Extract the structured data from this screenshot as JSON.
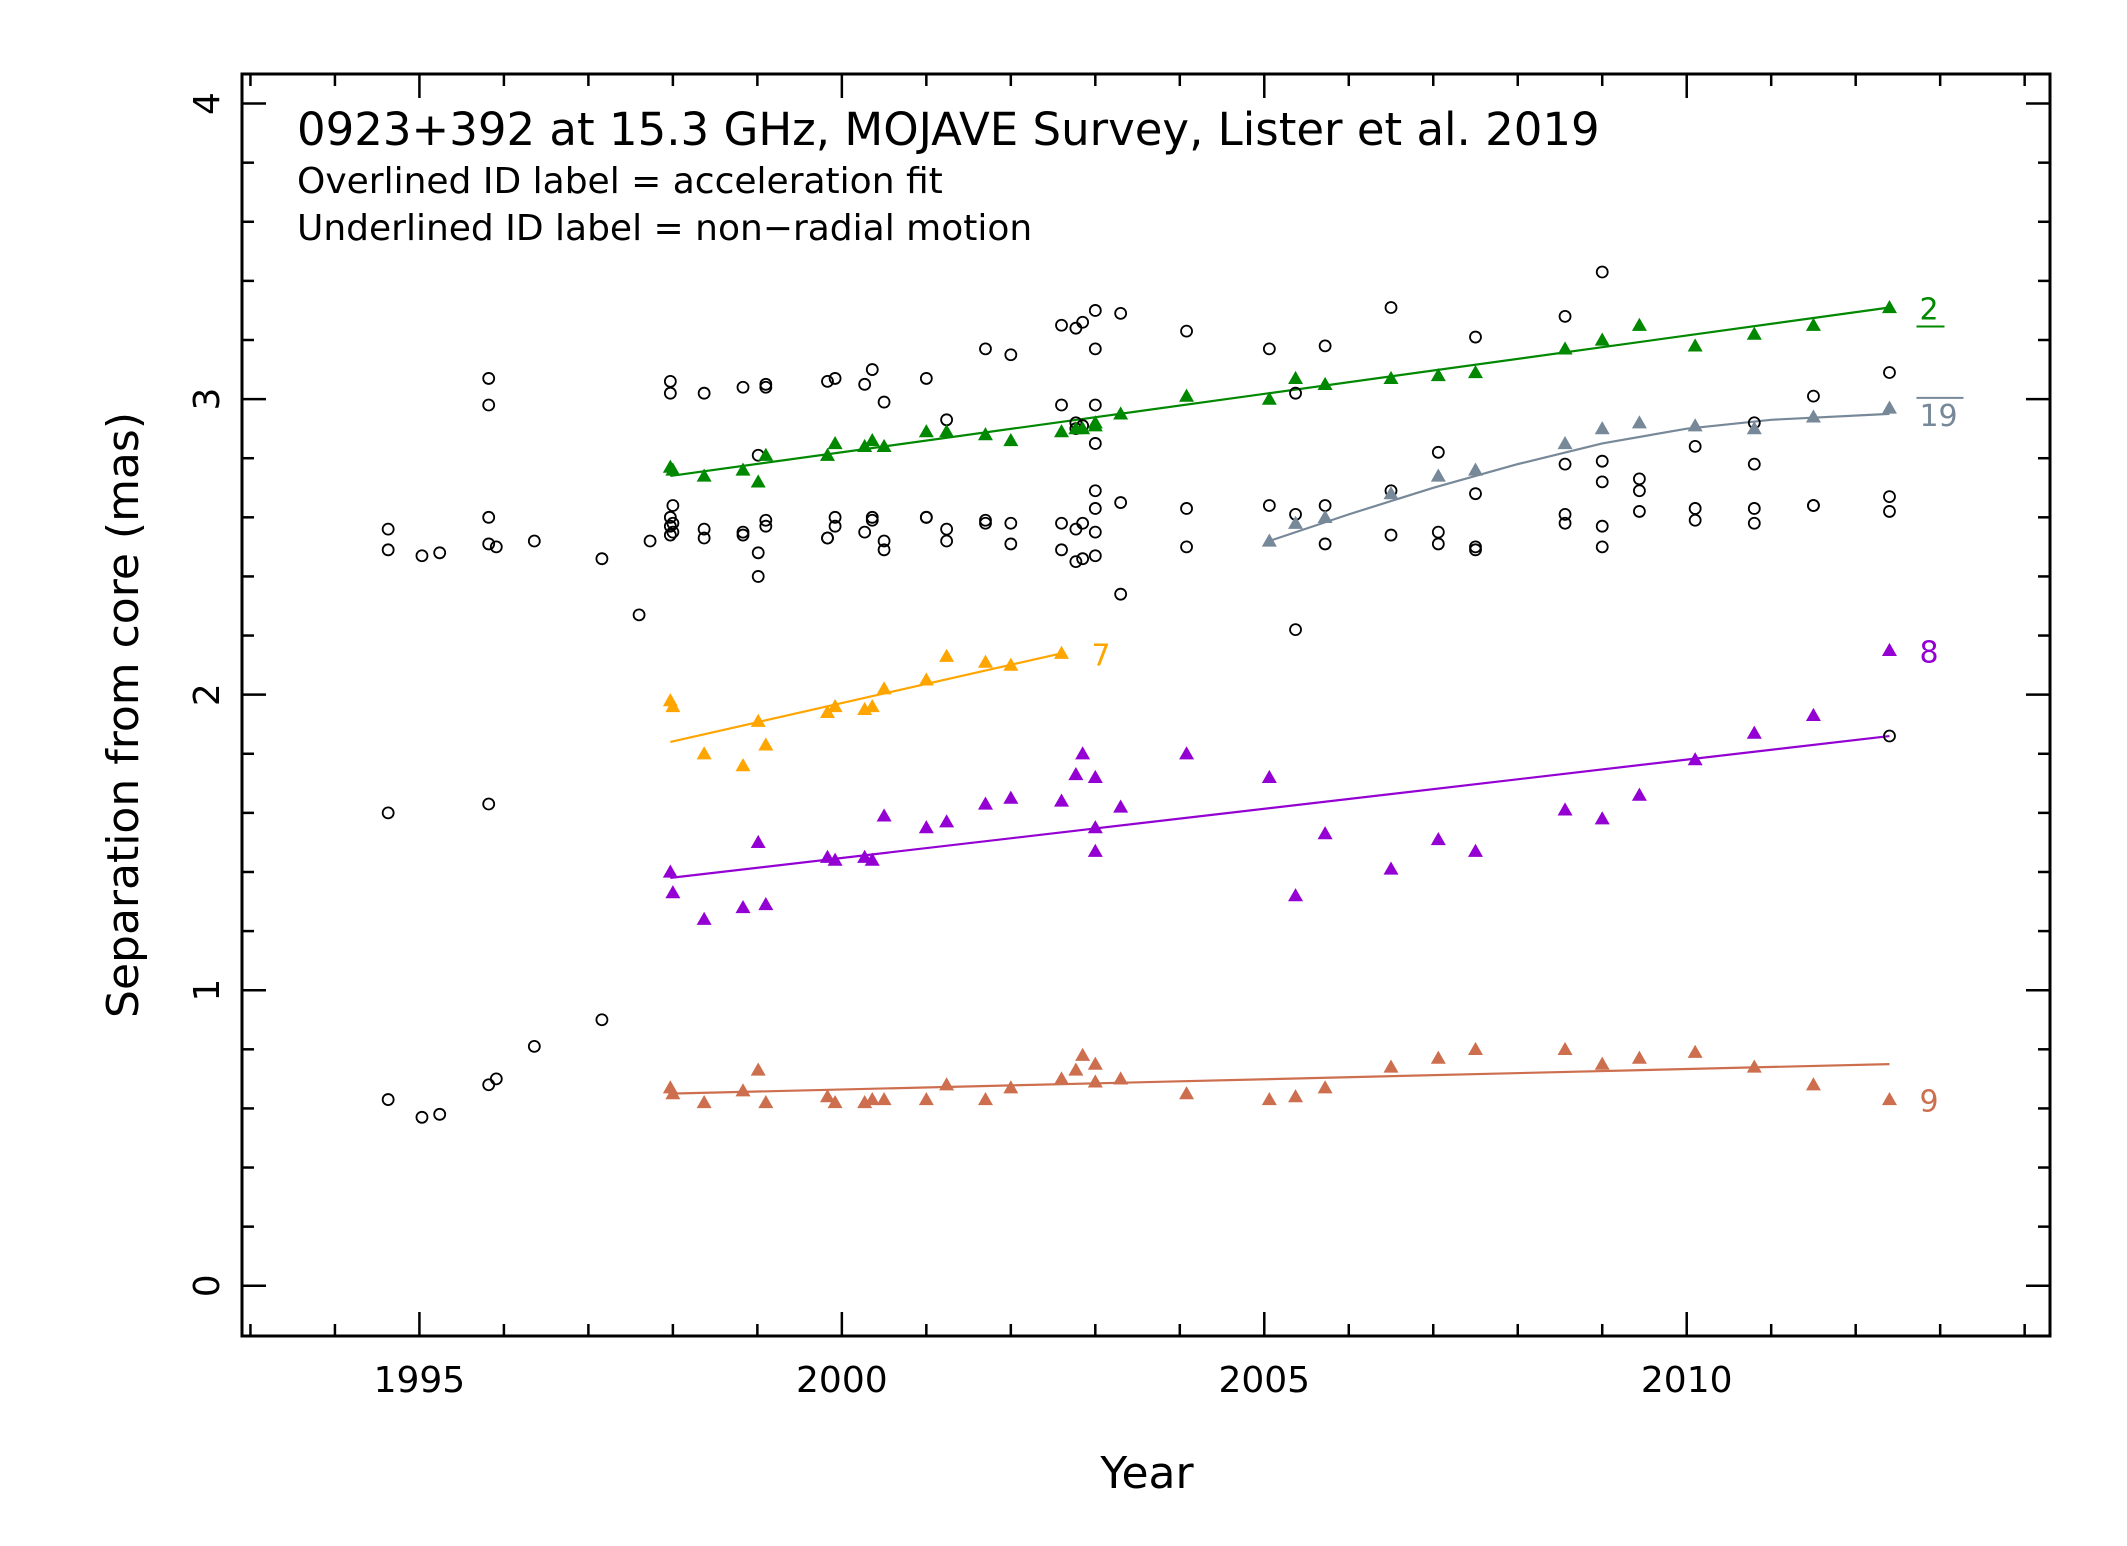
{
  "chart_data": {
    "type": "scatter",
    "title": "0923+392 at 15.3 GHz, MOJAVE Survey, Lister et al. 2019",
    "subtitle_lines": [
      "Overlined ID label = acceleration fit",
      "Underlined ID label = non−radial motion"
    ],
    "xlabel": "Year",
    "ylabel": "Separation from core (mas)",
    "xlim": [
      1992.9,
      2014.3
    ],
    "ylim": [
      -0.17,
      4.1
    ],
    "xticks": [
      1995,
      2000,
      2005,
      2010
    ],
    "xtick_labels": [
      "1995",
      "2000",
      "2005",
      "2010"
    ],
    "yticks": [
      0,
      1,
      2,
      3,
      4
    ],
    "ytick_labels": [
      "0",
      "1",
      "2",
      "3",
      "4"
    ],
    "grid": false,
    "unassigned": {
      "marker": "open-circle",
      "color": "#000000",
      "x": [
        1994.63,
        1994.63,
        1994.63,
        1994.63,
        1995.03,
        1995.03,
        1995.24,
        1995.24,
        1995.82,
        1995.82,
        1995.82,
        1995.82,
        1995.82,
        1995.82,
        1995.91,
        1995.91,
        1996.36,
        1996.36,
        1997.16,
        1997.16,
        1997.6,
        1997.73,
        1997.97,
        1997.97,
        1997.97,
        1997.97,
        1997.97,
        1998.0,
        1998.0,
        1998.0,
        1998.37,
        1998.37,
        1998.37,
        1998.83,
        1998.83,
        1998.83,
        1999.01,
        1999.01,
        1999.01,
        1999.1,
        1999.1,
        1999.1,
        1999.1,
        1999.83,
        1999.83,
        1999.83,
        1999.92,
        1999.92,
        1999.92,
        2000.27,
        2000.27,
        2000.36,
        2000.36,
        2000.36,
        2000.5,
        2000.5,
        2000.5,
        2001.0,
        2001.0,
        2001.0,
        2001.24,
        2001.24,
        2001.24,
        2001.7,
        2001.7,
        2001.7,
        2002.0,
        2002.0,
        2002.0,
        2002.6,
        2002.6,
        2002.6,
        2002.6,
        2002.77,
        2002.77,
        2002.77,
        2002.77,
        2002.77,
        2002.85,
        2002.85,
        2002.85,
        2002.85,
        2003.0,
        2003.0,
        2003.0,
        2003.0,
        2003.0,
        2003.0,
        2003.0,
        2003.0,
        2003.3,
        2003.3,
        2003.3,
        2004.08,
        2004.08,
        2004.08,
        2005.06,
        2005.06,
        2005.37,
        2005.37,
        2005.37,
        2005.72,
        2005.72,
        2005.72,
        2006.5,
        2006.5,
        2006.5,
        2007.06,
        2007.06,
        2007.06,
        2007.5,
        2007.5,
        2007.5,
        2007.5,
        2008.56,
        2008.56,
        2008.56,
        2008.56,
        2009.0,
        2009.0,
        2009.0,
        2009.0,
        2009.0,
        2009.44,
        2009.44,
        2009.44,
        2010.1,
        2010.1,
        2010.1,
        2010.8,
        2010.8,
        2010.8,
        2010.8,
        2011.5,
        2011.5,
        2011.5,
        2012.4,
        2012.4,
        2012.4,
        2012.4
      ],
      "y": [
        2.56,
        2.49,
        1.6,
        0.63,
        2.47,
        0.57,
        2.48,
        0.58,
        3.07,
        2.98,
        2.6,
        2.51,
        1.63,
        0.68,
        2.5,
        0.7,
        2.52,
        0.81,
        2.46,
        0.9,
        2.27,
        2.52,
        3.06,
        2.6,
        2.57,
        2.54,
        3.02,
        2.64,
        2.58,
        2.55,
        3.02,
        2.56,
        2.53,
        3.04,
        2.55,
        2.54,
        2.81,
        2.48,
        2.4,
        3.05,
        3.04,
        2.59,
        2.57,
        3.06,
        2.53,
        2.53,
        3.07,
        2.6,
        2.57,
        3.05,
        2.55,
        3.1,
        2.6,
        2.59,
        2.99,
        2.52,
        2.49,
        3.07,
        2.6,
        2.6,
        2.93,
        2.56,
        2.52,
        3.17,
        2.59,
        2.58,
        3.15,
        2.58,
        2.51,
        3.25,
        2.98,
        2.58,
        2.49,
        3.24,
        2.92,
        2.56,
        2.45,
        2.9,
        3.26,
        2.91,
        2.58,
        2.46,
        3.3,
        3.17,
        2.98,
        2.85,
        2.69,
        2.63,
        2.55,
        2.47,
        3.29,
        2.65,
        2.34,
        3.23,
        2.63,
        2.5,
        3.17,
        2.64,
        3.02,
        2.61,
        2.22,
        3.18,
        2.64,
        2.51,
        3.31,
        2.69,
        2.54,
        2.82,
        2.55,
        2.51,
        3.21,
        2.68,
        2.5,
        2.49,
        3.28,
        2.78,
        2.61,
        2.58,
        3.43,
        2.79,
        2.72,
        2.57,
        2.5,
        2.73,
        2.69,
        2.62,
        2.84,
        2.63,
        2.59,
        2.92,
        2.78,
        2.63,
        2.58,
        3.01,
        2.64,
        2.64,
        3.09,
        2.67,
        2.62,
        1.86
      ]
    },
    "series": [
      {
        "name": "2",
        "label_style": "underlined",
        "color": "#008800",
        "marker": "filled-triangle",
        "x": [
          1997.97,
          1998.0,
          1998.37,
          1998.83,
          1999.01,
          1999.1,
          1999.83,
          1999.92,
          2000.27,
          2000.36,
          2000.5,
          2001.0,
          2001.24,
          2001.7,
          2002.0,
          2002.6,
          2002.77,
          2002.85,
          2003.0,
          2003.0,
          2003.3,
          2004.08,
          2005.06,
          2005.37,
          2005.72,
          2006.5,
          2007.06,
          2007.5,
          2008.56,
          2009.0,
          2009.44,
          2010.1,
          2010.8,
          2011.5,
          2012.4
        ],
        "y": [
          2.77,
          2.76,
          2.74,
          2.76,
          2.72,
          2.81,
          2.81,
          2.85,
          2.84,
          2.86,
          2.84,
          2.89,
          2.89,
          2.88,
          2.86,
          2.89,
          2.9,
          2.9,
          2.92,
          2.91,
          2.95,
          3.01,
          3.0,
          3.07,
          3.05,
          3.07,
          3.08,
          3.09,
          3.17,
          3.2,
          3.25,
          3.18,
          3.22,
          3.25,
          3.31
        ],
        "fit": {
          "x": [
            1997.97,
            2012.4
          ],
          "y": [
            2.74,
            3.31
          ]
        }
      },
      {
        "name": "19",
        "label_style": "overlined",
        "color": "#778899",
        "marker": "filled-triangle",
        "x": [
          2005.06,
          2005.37,
          2005.72,
          2006.5,
          2007.06,
          2007.5,
          2008.56,
          2009.0,
          2009.44,
          2010.1,
          2010.8,
          2011.5,
          2012.4
        ],
        "y": [
          2.52,
          2.58,
          2.6,
          2.68,
          2.74,
          2.76,
          2.85,
          2.9,
          2.92,
          2.91,
          2.9,
          2.94,
          2.97
        ],
        "fit": {
          "x": [
            2005.06,
            2006.0,
            2007.0,
            2008.0,
            2009.0,
            2010.0,
            2011.0,
            2012.4
          ],
          "y": [
            2.52,
            2.61,
            2.7,
            2.78,
            2.85,
            2.9,
            2.93,
            2.95
          ]
        }
      },
      {
        "name": "7",
        "label_style": "plain",
        "color": "#FFA500",
        "marker": "filled-triangle",
        "x": [
          1997.97,
          1998.0,
          1998.37,
          1998.83,
          1999.01,
          1999.1,
          1999.83,
          1999.92,
          2000.27,
          2000.36,
          2000.5,
          2001.0,
          2001.24,
          2001.7,
          2002.0,
          2002.6
        ],
        "y": [
          1.98,
          1.96,
          1.8,
          1.76,
          1.91,
          1.83,
          1.94,
          1.96,
          1.95,
          1.96,
          2.02,
          2.05,
          2.13,
          2.11,
          2.1,
          2.14
        ],
        "fit": {
          "x": [
            1997.97,
            2002.6
          ],
          "y": [
            1.84,
            2.14
          ]
        }
      },
      {
        "name": "8",
        "label_style": "plain",
        "color": "#9400D3",
        "marker": "filled-triangle",
        "x": [
          1997.97,
          1998.0,
          1998.37,
          1998.83,
          1999.01,
          1999.1,
          1999.83,
          1999.92,
          2000.27,
          2000.36,
          2000.5,
          2001.0,
          2001.24,
          2001.7,
          2002.0,
          2002.6,
          2002.77,
          2002.85,
          2003.0,
          2003.0,
          2003.0,
          2003.3,
          2004.08,
          2005.06,
          2005.37,
          2005.72,
          2006.5,
          2007.06,
          2007.5,
          2008.56,
          2009.0,
          2009.44,
          2010.1,
          2010.8,
          2011.5,
          2012.4
        ],
        "y": [
          1.4,
          1.33,
          1.24,
          1.28,
          1.5,
          1.29,
          1.45,
          1.44,
          1.45,
          1.44,
          1.59,
          1.55,
          1.57,
          1.63,
          1.65,
          1.64,
          1.73,
          1.8,
          1.72,
          1.55,
          1.47,
          1.62,
          1.8,
          1.72,
          1.32,
          1.53,
          1.41,
          1.51,
          1.47,
          1.61,
          1.58,
          1.66,
          1.78,
          1.87,
          1.93,
          2.15
        ],
        "fit": {
          "x": [
            1997.97,
            2012.4
          ],
          "y": [
            1.38,
            1.86
          ]
        }
      },
      {
        "name": "9",
        "label_style": "plain",
        "color": "#CD6F4F",
        "marker": "filled-triangle",
        "x": [
          1997.97,
          1998.0,
          1998.37,
          1998.83,
          1999.01,
          1999.1,
          1999.83,
          1999.92,
          2000.27,
          2000.36,
          2000.5,
          2001.0,
          2001.24,
          2001.7,
          2002.0,
          2002.6,
          2002.77,
          2002.85,
          2003.0,
          2003.0,
          2003.3,
          2004.08,
          2005.06,
          2005.37,
          2005.72,
          2006.5,
          2007.06,
          2007.5,
          2008.56,
          2009.0,
          2009.44,
          2010.1,
          2010.8,
          2011.5,
          2012.4
        ],
        "y": [
          0.67,
          0.65,
          0.62,
          0.66,
          0.73,
          0.62,
          0.64,
          0.62,
          0.62,
          0.63,
          0.63,
          0.63,
          0.68,
          0.63,
          0.67,
          0.7,
          0.73,
          0.78,
          0.69,
          0.75,
          0.7,
          0.65,
          0.63,
          0.64,
          0.67,
          0.74,
          0.77,
          0.8,
          0.8,
          0.75,
          0.77,
          0.79,
          0.74,
          0.68,
          0.63
        ],
        "fit": {
          "x": [
            1997.97,
            2012.4
          ],
          "y": [
            0.65,
            0.75
          ]
        }
      }
    ]
  }
}
